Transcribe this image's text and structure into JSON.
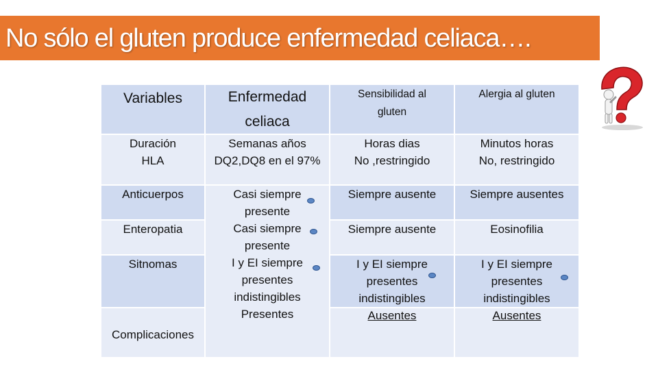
{
  "title": "No sólo el gluten produce enfermedad celiaca….",
  "table": {
    "headers": [
      "Variables",
      "Enfermedad celiaca",
      "Sensibilidad al gluten",
      "Alergia al gluten"
    ],
    "rows": {
      "duracion_hla": {
        "variable_lines": [
          "Duración",
          "HLA"
        ],
        "celiac_lines": [
          "Semanas años",
          "DQ2,DQ8 en el 97%"
        ],
        "sensitivity_lines": [
          "Horas dias",
          "No ,restringido"
        ],
        "allergy_lines": [
          "Minutos horas",
          "No, restringido"
        ]
      },
      "anticuerpos": {
        "variable": "Anticuerpos",
        "sensitivity": "Siempre ausente",
        "allergy": "Siempre ausentes"
      },
      "enteropatia": {
        "variable": "Enteropatia",
        "sensitivity": "Siempre ausente",
        "allergy": "Eosinofilia"
      },
      "sitnomas": {
        "variable": "Sitnomas"
      },
      "complicaciones": {
        "variable": "Complicaciones"
      },
      "celiac_column_lines": [
        "Casi siempre",
        "presente",
        "Casi siempre",
        "presente",
        "I y EI siempre",
        "presentes",
        "indistingibles",
        "Presentes"
      ],
      "sensitivity_symptoms_lines": [
        "I y EI siempre",
        "presentes",
        "indistingibles",
        "Ausentes"
      ],
      "allergy_symptoms_lines": [
        "I y EI siempre",
        "presentes",
        "indistingibles",
        "Ausentes"
      ]
    }
  },
  "icons": [
    "question-mark-figure-icon",
    "bullet-dot-icon"
  ],
  "colors": {
    "title_bar": "#e8772e",
    "cell_dark": "#cfdaf0",
    "cell_light": "#e7ecf7",
    "bullet": "#5b86c4"
  }
}
